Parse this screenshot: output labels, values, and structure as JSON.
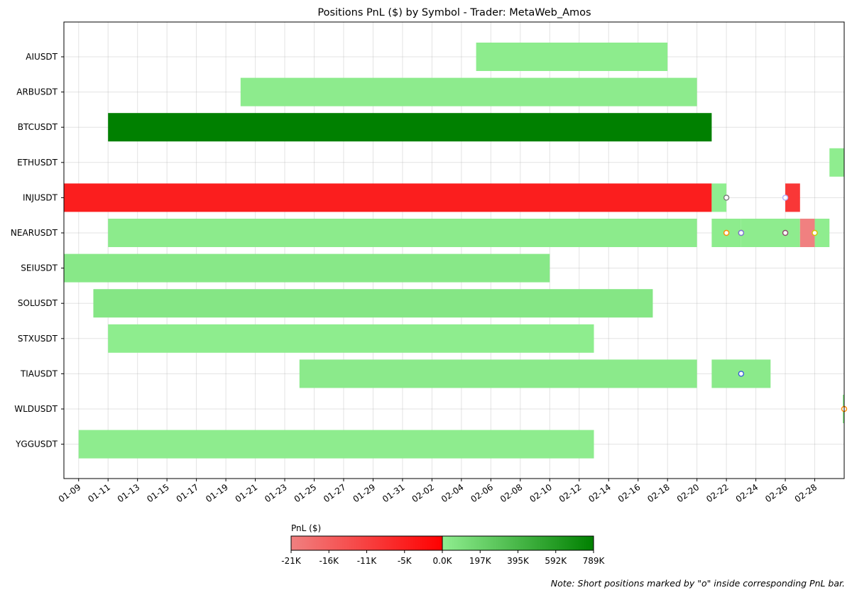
{
  "chart_data": {
    "type": "gantt",
    "title": "Positions PnL ($) by Symbol - Trader: MetaWeb_Amos",
    "x_axis": {
      "type": "date",
      "range": [
        "2024-01-08",
        "2024-03-01"
      ],
      "tick_labels": [
        "01-09",
        "01-11",
        "01-13",
        "01-15",
        "01-17",
        "01-19",
        "01-21",
        "01-23",
        "01-25",
        "01-27",
        "01-29",
        "01-31",
        "02-02",
        "02-04",
        "02-06",
        "02-08",
        "02-10",
        "02-12",
        "02-14",
        "02-16",
        "02-18",
        "02-20",
        "02-22",
        "02-24",
        "02-26",
        "02-28"
      ],
      "grid": true
    },
    "y_axis": {
      "categories": [
        "AIUSDT",
        "ARBUSDT",
        "BTCUSDT",
        "ETHUSDT",
        "INJUSDT",
        "NEARUSDT",
        "SEIUSDT",
        "SOLUSDT",
        "STXUSDT",
        "TIAUSDT",
        "WLDUSDT",
        "YGGUSDT"
      ],
      "grid": true
    },
    "positions": [
      {
        "symbol": "AIUSDT",
        "start": "2024-02-05",
        "end": "2024-02-18",
        "pnl": 15000
      },
      {
        "symbol": "ARBUSDT",
        "start": "2024-01-20",
        "end": "2024-02-20",
        "pnl": 18000
      },
      {
        "symbol": "BTCUSDT",
        "start": "2024-01-11",
        "end": "2024-02-21",
        "pnl": 789000
      },
      {
        "symbol": "ETHUSDT",
        "start": "2024-02-29",
        "end": "2024-03-01",
        "pnl": 5000
      },
      {
        "symbol": "INJUSDT",
        "start": "2024-01-08",
        "end": "2024-02-21",
        "pnl": -5000
      },
      {
        "symbol": "INJUSDT",
        "start": "2024-02-21",
        "end": "2024-02-22",
        "pnl": 3000,
        "short": true,
        "marker_color": "#555555"
      },
      {
        "symbol": "INJUSDT",
        "start": "2024-02-26",
        "end": "2024-02-27",
        "pnl": -9000,
        "short": true,
        "marker_color": "#9999ff"
      },
      {
        "symbol": "NEARUSDT",
        "start": "2024-01-11",
        "end": "2024-02-20",
        "pnl": 20000
      },
      {
        "symbol": "NEARUSDT",
        "start": "2024-02-21",
        "end": "2024-02-23",
        "pnl": 15000
      },
      {
        "symbol": "NEARUSDT",
        "start": "2024-02-23",
        "end": "2024-02-27",
        "pnl": 12000
      },
      {
        "symbol": "NEARUSDT",
        "start": "2024-02-27",
        "end": "2024-02-28",
        "pnl": -21000
      },
      {
        "symbol": "NEARUSDT",
        "start": "2024-02-28",
        "end": "2024-02-29",
        "pnl": 8000
      },
      {
        "symbol": "SEIUSDT",
        "start": "2024-01-08",
        "end": "2024-02-10",
        "pnl": 45000
      },
      {
        "symbol": "SOLUSDT",
        "start": "2024-01-10",
        "end": "2024-02-17",
        "pnl": 60000
      },
      {
        "symbol": "STXUSDT",
        "start": "2024-01-11",
        "end": "2024-02-13",
        "pnl": 10000
      },
      {
        "symbol": "TIAUSDT",
        "start": "2024-01-24",
        "end": "2024-02-20",
        "pnl": 30000
      },
      {
        "symbol": "TIAUSDT",
        "start": "2024-02-21",
        "end": "2024-02-25",
        "pnl": 28000
      },
      {
        "symbol": "WLDUSDT",
        "start": "2024-03-01",
        "end": "2024-03-01",
        "pnl": 12000
      },
      {
        "symbol": "YGGUSDT",
        "start": "2024-01-09",
        "end": "2024-02-13",
        "pnl": 12000
      }
    ],
    "short_markers": [
      {
        "symbol": "INJUSDT",
        "date": "2024-02-22",
        "color": "#7a7a7a"
      },
      {
        "symbol": "INJUSDT",
        "date": "2024-02-26",
        "color": "#b0b0ff"
      },
      {
        "symbol": "NEARUSDT",
        "date": "2024-02-22",
        "color": "#ff8c00"
      },
      {
        "symbol": "NEARUSDT",
        "date": "2024-02-23",
        "color": "#d62728"
      },
      {
        "symbol": "NEARUSDT",
        "date": "2024-02-23",
        "color": "#7a7ad6"
      },
      {
        "symbol": "NEARUSDT",
        "date": "2024-02-26",
        "color": "#8c4a6b"
      },
      {
        "symbol": "NEARUSDT",
        "date": "2024-02-28",
        "color": "#d4c200"
      },
      {
        "symbol": "TIAUSDT",
        "date": "2024-02-23",
        "color": "#3b5fd6"
      },
      {
        "symbol": "WLDUSDT",
        "date": "2024-03-01",
        "color": "#ff8c00"
      }
    ],
    "colorbar": {
      "label": "PnL ($)",
      "negative_min": -21000,
      "positive_max": 789000,
      "negative_colors": [
        "#f08080",
        "#ff0000"
      ],
      "positive_colors": [
        "#90ee90",
        "#008000"
      ],
      "tick_labels": [
        "-21K",
        "-16K",
        "-11K",
        "-5K",
        "0.0K",
        "197K",
        "395K",
        "592K",
        "789K"
      ]
    }
  },
  "note": "Note: Short positions marked by \"o\" inside corresponding PnL bar."
}
